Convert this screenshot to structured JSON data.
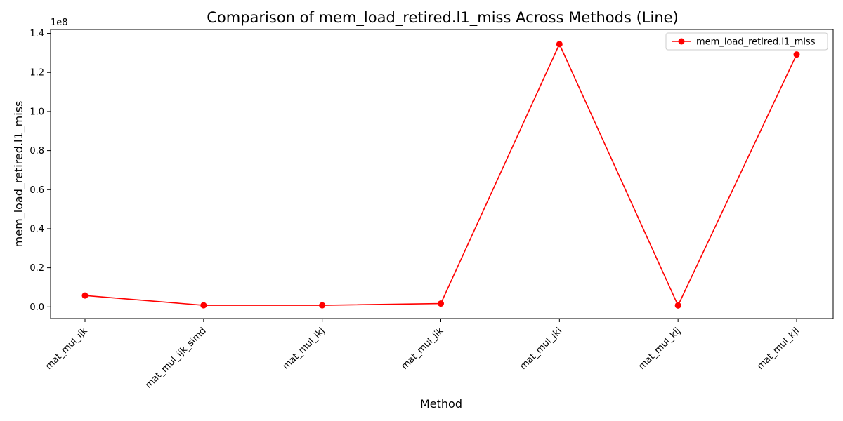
{
  "chart_data": {
    "type": "line",
    "title": "Comparison of mem_load_retired.l1_miss Across Methods (Line)",
    "xlabel": "Method",
    "ylabel": "mem_load_retired.l1_miss",
    "y_offset_label": "1e8",
    "categories": [
      "mat_mul_ijk",
      "mat_mul_ijk_simd",
      "mat_mul_ikj",
      "mat_mul_jik",
      "mat_mul_jki",
      "mat_mul_kij",
      "mat_mul_kji"
    ],
    "series": [
      {
        "name": "mem_load_retired.l1_miss",
        "values": [
          5800000,
          800000,
          800000,
          1700000,
          134500000,
          700000,
          129200000
        ]
      }
    ],
    "ylim": [
      -6000000,
      142000000
    ],
    "y_ticks": [
      0,
      20000000,
      40000000,
      60000000,
      80000000,
      100000000,
      120000000,
      140000000
    ],
    "y_tick_labels": [
      "0.0",
      "0.2",
      "0.4",
      "0.6",
      "0.8",
      "1.0",
      "1.2",
      "1.4"
    ],
    "grid": false,
    "legend_position": "upper right",
    "line_color": "#ff0000"
  }
}
